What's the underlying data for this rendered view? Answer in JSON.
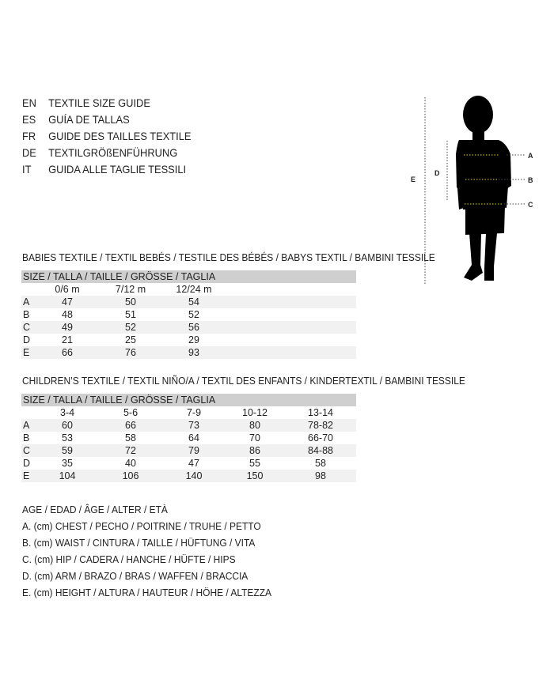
{
  "languages": [
    {
      "code": "EN",
      "text": "TEXTILE SIZE GUIDE"
    },
    {
      "code": "ES",
      "text": "GUÍA DE TALLAS"
    },
    {
      "code": "FR",
      "text": "GUIDE DES TAILLES TEXTILE"
    },
    {
      "code": "DE",
      "text": "TEXTILGRÖßENFÜHRUNG"
    },
    {
      "code": "IT",
      "text": "GUIDA ALLE TAGLIE TESSILI"
    }
  ],
  "figure": {
    "labels": {
      "a": "A",
      "b": "B",
      "c": "C",
      "d": "D",
      "e": "E"
    },
    "marker_color": "#e8e000"
  },
  "babies": {
    "title": "BABIES TEXTILE / TEXTIL BEBÉS / TESTILE DES BÉBÉS / BABYS TEXTIL / BAMBINI TESSILE",
    "header": "SIZE / TALLA / TAILLE / GRÖSSE / TAGLIA",
    "columns": [
      "0/6 m",
      "7/12 m",
      "12/24 m"
    ],
    "rows": [
      {
        "label": "A",
        "values": [
          "47",
          "50",
          "54"
        ]
      },
      {
        "label": "B",
        "values": [
          "48",
          "51",
          "52"
        ]
      },
      {
        "label": "C",
        "values": [
          "49",
          "52",
          "56"
        ]
      },
      {
        "label": "D",
        "values": [
          "21",
          "25",
          "29"
        ]
      },
      {
        "label": "E",
        "values": [
          "66",
          "76",
          "93"
        ]
      }
    ]
  },
  "children": {
    "title": "CHILDREN’S TEXTILE / TEXTIL NIÑO/A / TEXTIL DES ENFANTS / KINDERTEXTIL / BAMBINI TESSILE",
    "header": "SIZE / TALLA / TAILLE / GRÖSSE / TAGLIA",
    "columns": [
      "3-4",
      "5-6",
      "7-9",
      "10-12",
      "13-14"
    ],
    "rows": [
      {
        "label": "A",
        "values": [
          "60",
          "66",
          "73",
          "80",
          "78-82"
        ]
      },
      {
        "label": "B",
        "values": [
          "53",
          "58",
          "64",
          "70",
          "66-70"
        ]
      },
      {
        "label": "C",
        "values": [
          "59",
          "72",
          "79",
          "86",
          "84-88"
        ]
      },
      {
        "label": "D",
        "values": [
          "35",
          "40",
          "47",
          "55",
          "58"
        ]
      },
      {
        "label": "E",
        "values": [
          "104",
          "106",
          "140",
          "150",
          "98"
        ]
      }
    ]
  },
  "legend": [
    "AGE / EDAD / ÂGE / ALTER / ETÀ",
    "A. (cm) CHEST / PECHO / POITRINE / TRUHE / PETTO",
    "B. (cm) WAIST / CINTURA / TAILLE / HÜFTUNG / VITA",
    "C. (cm) HIP / CADERA / HANCHE / HÜFTE / HIPS",
    "D. (cm) ARM / BRAZO / BRAS / WAFFEN / BRACCIA",
    "E. (cm) HEIGHT / ALTURA / HAUTEUR / HÖHE / ALTEZZA"
  ]
}
